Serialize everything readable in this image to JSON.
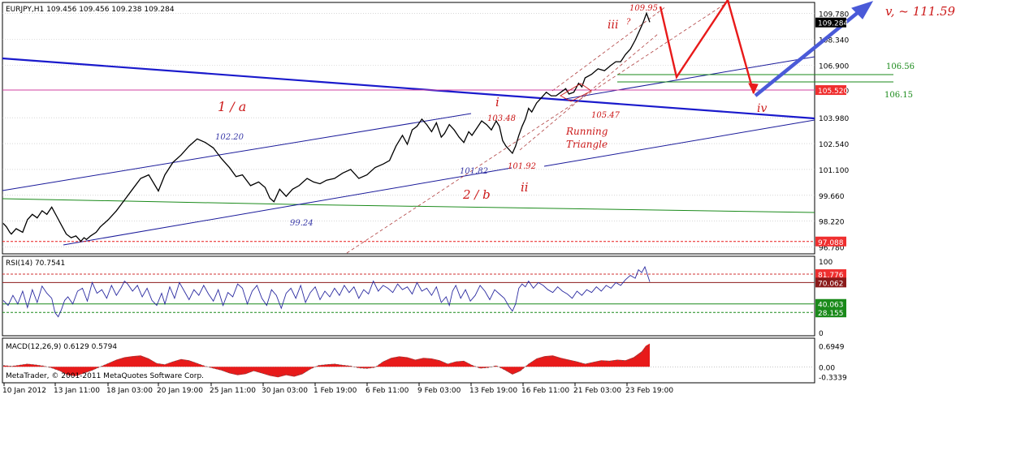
{
  "chart_data": [
    {
      "type": "line",
      "symbol_header": "EURJPY,H1  109.456 109.456 109.238 109.284",
      "ylim": [
        96.4,
        110.4
      ],
      "y_ticks": [
        "109.780",
        "108.340",
        "106.900",
        "105.520",
        "103.980",
        "102.540",
        "101.100",
        "99.660",
        "98.220",
        "96.780"
      ],
      "price_tags": [
        {
          "label": "109.284",
          "value": 109.284,
          "bg": "#000000",
          "fg": "#ffffff"
        },
        {
          "label": "105.520",
          "value": 105.52,
          "bg": "#ef2f2f",
          "fg": "#ffffff"
        },
        {
          "label": "97.088",
          "value": 97.088,
          "bg": "#ef2f2f",
          "fg": "#ffffff"
        }
      ],
      "series": [
        {
          "color": "#000000",
          "x": [
            0,
            4,
            8,
            10,
            16,
            24,
            30,
            36,
            42,
            48,
            54,
            60,
            66,
            72,
            78,
            84,
            90,
            96,
            100,
            103,
            108,
            115,
            120,
            130,
            140,
            150,
            160,
            170,
            180,
            192,
            200,
            210,
            220,
            230,
            240,
            250,
            260,
            270,
            280,
            288,
            296,
            306,
            316,
            324,
            330,
            335,
            342,
            350,
            358,
            366,
            376,
            384,
            392,
            400,
            410,
            420,
            430,
            440,
            450,
            460,
            470,
            478,
            486,
            494,
            500,
            506,
            512,
            518,
            524,
            530,
            536,
            542,
            546,
            552,
            558,
            564,
            570,
            576,
            580,
            586,
            592,
            598,
            604,
            610,
            614,
            618,
            622,
            626,
            630,
            634,
            638,
            642,
            646,
            650,
            654,
            660,
            666,
            672,
            678,
            684,
            690,
            696,
            700,
            706,
            712,
            716,
            720,
            728,
            736,
            744,
            752,
            758,
            764,
            770,
            776,
            782,
            788,
            792,
            796,
            800
          ],
          "y": [
            98.1,
            97.9,
            97.6,
            97.5,
            97.8,
            97.6,
            98.3,
            98.6,
            98.4,
            98.8,
            98.6,
            99.0,
            98.5,
            98.0,
            97.5,
            97.3,
            97.4,
            97.1,
            97.3,
            97.2,
            97.4,
            97.6,
            97.9,
            98.3,
            98.8,
            99.4,
            100.0,
            100.6,
            100.8,
            99.9,
            100.8,
            101.5,
            101.9,
            102.4,
            102.8,
            102.6,
            102.3,
            101.7,
            101.2,
            100.7,
            100.8,
            100.2,
            100.4,
            100.1,
            99.5,
            99.3,
            100.0,
            99.6,
            100.0,
            100.2,
            100.6,
            100.4,
            100.3,
            100.5,
            100.6,
            100.9,
            101.1,
            100.6,
            100.8,
            101.2,
            101.4,
            101.6,
            102.4,
            103.0,
            102.5,
            103.3,
            103.5,
            103.9,
            103.6,
            103.2,
            103.7,
            102.9,
            103.1,
            103.6,
            103.3,
            102.9,
            102.6,
            103.2,
            103.0,
            103.4,
            103.8,
            103.6,
            103.3,
            103.8,
            103.5,
            102.7,
            102.4,
            102.2,
            102.0,
            102.4,
            103.0,
            103.5,
            103.9,
            104.5,
            104.3,
            104.8,
            105.1,
            105.4,
            105.2,
            105.2,
            105.4,
            105.6,
            105.3,
            105.4,
            105.9,
            105.7,
            106.2,
            106.4,
            106.7,
            106.6,
            106.9,
            107.1,
            107.1,
            107.5,
            107.8,
            108.3,
            108.9,
            109.3,
            109.8,
            109.3
          ]
        }
      ]
    },
    {
      "type": "line",
      "title": "RSI(14) 70.7541",
      "ylim": [
        0,
        100
      ],
      "y_ticks": [
        "100",
        "0"
      ],
      "levels": [
        {
          "label": "81.776",
          "value": 81.776,
          "color": "#d03030",
          "dash": true,
          "bg": "#ef2f2f"
        },
        {
          "label": "70.062",
          "value": 70.062,
          "color": "#8b1a1a",
          "dash": false,
          "bg": "#8b1a1a"
        },
        {
          "label": "40.063",
          "value": 40.063,
          "color": "#1a8a1a",
          "dash": false,
          "bg": "#1a8a1a"
        },
        {
          "label": "28.155",
          "value": 28.155,
          "color": "#1a8a1a",
          "dash": true,
          "bg": "#1a8a1a"
        }
      ],
      "series": [
        {
          "color": "#2a2aa0",
          "x": [
            0,
            6,
            12,
            18,
            24,
            30,
            36,
            42,
            48,
            54,
            60,
            64,
            68,
            72,
            76,
            80,
            86,
            92,
            98,
            104,
            110,
            116,
            122,
            128,
            134,
            140,
            146,
            150,
            154,
            160,
            166,
            172,
            178,
            184,
            190,
            196,
            200,
            206,
            212,
            218,
            224,
            230,
            236,
            242,
            248,
            254,
            260,
            266,
            272,
            278,
            284,
            290,
            296,
            302,
            308,
            314,
            320,
            326,
            332,
            338,
            344,
            350,
            356,
            362,
            368,
            374,
            380,
            386,
            392,
            398,
            404,
            410,
            416,
            422,
            428,
            434,
            440,
            446,
            452,
            458,
            464,
            470,
            476,
            482,
            488,
            494,
            500,
            506,
            512,
            518,
            524,
            530,
            536,
            542,
            548,
            552,
            556,
            560,
            566,
            572,
            578,
            584,
            590,
            596,
            602,
            608,
            614,
            620,
            626,
            630,
            634,
            638,
            642,
            646,
            650,
            656,
            662,
            668,
            674,
            680,
            686,
            692,
            698,
            704,
            710,
            716,
            722,
            728,
            734,
            740,
            746,
            752,
            758,
            764,
            770,
            776,
            782,
            786,
            790,
            794,
            798,
            800
          ],
          "y": [
            45,
            38,
            52,
            40,
            58,
            35,
            60,
            42,
            65,
            55,
            48,
            28,
            22,
            32,
            45,
            50,
            40,
            58,
            62,
            44,
            70,
            55,
            60,
            48,
            66,
            52,
            63,
            72,
            68,
            58,
            66,
            50,
            62,
            45,
            38,
            55,
            40,
            64,
            48,
            70,
            58,
            46,
            60,
            52,
            66,
            54,
            44,
            60,
            38,
            56,
            50,
            68,
            62,
            40,
            58,
            66,
            48,
            38,
            60,
            52,
            34,
            55,
            62,
            48,
            66,
            42,
            56,
            64,
            46,
            58,
            50,
            62,
            52,
            66,
            56,
            64,
            48,
            60,
            54,
            72,
            58,
            66,
            62,
            56,
            68,
            60,
            64,
            54,
            70,
            58,
            62,
            52,
            64,
            42,
            50,
            38,
            58,
            66,
            48,
            60,
            44,
            52,
            66,
            58,
            46,
            60,
            54,
            48,
            36,
            30,
            40,
            62,
            68,
            64,
            72,
            62,
            70,
            66,
            60,
            56,
            64,
            58,
            54,
            48,
            58,
            52,
            60,
            56,
            64,
            58,
            66,
            62,
            70,
            66,
            74,
            80,
            76,
            88,
            84,
            92,
            78,
            71
          ]
        }
      ]
    },
    {
      "type": "area",
      "title": "MACD(12,26,9) 0.6129 0.5794",
      "ylim": [
        -0.48,
        0.85
      ],
      "y_ticks": [
        "0.6949",
        "0.00",
        "-0.3339"
      ],
      "series": [
        {
          "color": "#e81a1a",
          "x": [
            0,
            10,
            20,
            30,
            40,
            50,
            60,
            70,
            80,
            90,
            100,
            110,
            120,
            130,
            140,
            150,
            160,
            170,
            180,
            190,
            200,
            210,
            220,
            230,
            240,
            250,
            260,
            270,
            280,
            290,
            300,
            310,
            320,
            330,
            340,
            350,
            360,
            370,
            380,
            390,
            400,
            410,
            420,
            430,
            440,
            450,
            460,
            470,
            480,
            490,
            500,
            510,
            520,
            530,
            540,
            550,
            560,
            570,
            580,
            590,
            600,
            610,
            620,
            630,
            640,
            650,
            660,
            670,
            680,
            690,
            700,
            710,
            720,
            730,
            740,
            750,
            760,
            770,
            780,
            790,
            795,
            800
          ],
          "y": [
            0.05,
            0.02,
            0.06,
            0.1,
            0.07,
            0.03,
            -0.04,
            -0.14,
            -0.28,
            -0.31,
            -0.22,
            -0.12,
            0.0,
            0.12,
            0.24,
            0.32,
            0.36,
            0.38,
            0.28,
            0.12,
            0.08,
            0.18,
            0.26,
            0.22,
            0.12,
            0.02,
            -0.05,
            -0.12,
            -0.22,
            -0.28,
            -0.24,
            -0.14,
            -0.22,
            -0.3,
            -0.35,
            -0.28,
            -0.33,
            -0.25,
            -0.08,
            0.05,
            0.08,
            0.1,
            0.06,
            0.03,
            -0.04,
            -0.06,
            -0.02,
            0.18,
            0.3,
            0.35,
            0.32,
            0.24,
            0.3,
            0.28,
            0.22,
            0.1,
            0.18,
            0.2,
            0.06,
            -0.05,
            -0.03,
            0.04,
            -0.1,
            -0.26,
            -0.14,
            0.1,
            0.28,
            0.36,
            0.38,
            0.3,
            0.24,
            0.18,
            0.1,
            0.16,
            0.22,
            0.2,
            0.24,
            0.22,
            0.32,
            0.52,
            0.7,
            0.78
          ]
        }
      ]
    }
  ],
  "x_axis_labels": [
    "10 Jan 2012",
    "13 Jan 11:00",
    "18 Jan 03:00",
    "20 Jan 19:00",
    "25 Jan 11:00",
    "30 Jan 03:00",
    "1 Feb 19:00",
    "6 Feb 11:00",
    "9 Feb 03:00",
    "13 Feb 19:00",
    "16 Feb 11:00",
    "21 Feb 03:00",
    "23 Feb 19:00"
  ],
  "copyright": "MetaTrader, © 2001-2011 MetaQuotes Software Corp.",
  "annotations": [
    {
      "text": "1 / a",
      "color": "#cc1a1a",
      "style": "wave"
    },
    {
      "text": "2 / b",
      "color": "#cc1a1a",
      "style": "wave"
    },
    {
      "text": "i",
      "color": "#cc1a1a",
      "style": "wave"
    },
    {
      "text": "ii",
      "color": "#cc1a1a",
      "style": "wave"
    },
    {
      "text": "iii",
      "color": "#cc1a1a",
      "style": "wave"
    },
    {
      "text": "?",
      "color": "#cc1a1a",
      "style": "wave-small"
    },
    {
      "text": "iv",
      "color": "#cc1a1a",
      "style": "wave"
    },
    {
      "text": "v,   ~ 111.59",
      "color": "#cc1a1a",
      "style": "wave-big"
    },
    {
      "text": "Running",
      "color": "#cc1a1a",
      "style": "label"
    },
    {
      "text": "Triangle",
      "color": "#cc1a1a",
      "style": "label"
    },
    {
      "text": "102.20",
      "color": "#3a3aa8",
      "style": "price-blue"
    },
    {
      "text": "99.24",
      "color": "#3a3aa8",
      "style": "price-blue"
    },
    {
      "text": "101.82",
      "color": "#3a3aa8",
      "style": "price-blue"
    },
    {
      "text": "103.48",
      "color": "#cc1a1a",
      "style": "price-red"
    },
    {
      "text": "101.92",
      "color": "#cc1a1a",
      "style": "price-red"
    },
    {
      "text": "105.47",
      "color": "#cc1a1a",
      "style": "price-red"
    },
    {
      "text": "109.95",
      "color": "#cc1a1a",
      "style": "price-red"
    },
    {
      "text": "106.56",
      "color": "#1a8a1a",
      "style": "price-green"
    },
    {
      "text": "106.15",
      "color": "#1a8a1a",
      "style": "price-green"
    }
  ],
  "colors": {
    "frame": "#000000",
    "grid": "#bdbdbd",
    "channel": "#1a1a9a",
    "trend_thick": "#1a1acc",
    "forecast_red": "#e81a1a",
    "forecast_blue": "#4a5ad8",
    "ma_green": "#1a8a1a",
    "support_red": "#e81a1a"
  }
}
